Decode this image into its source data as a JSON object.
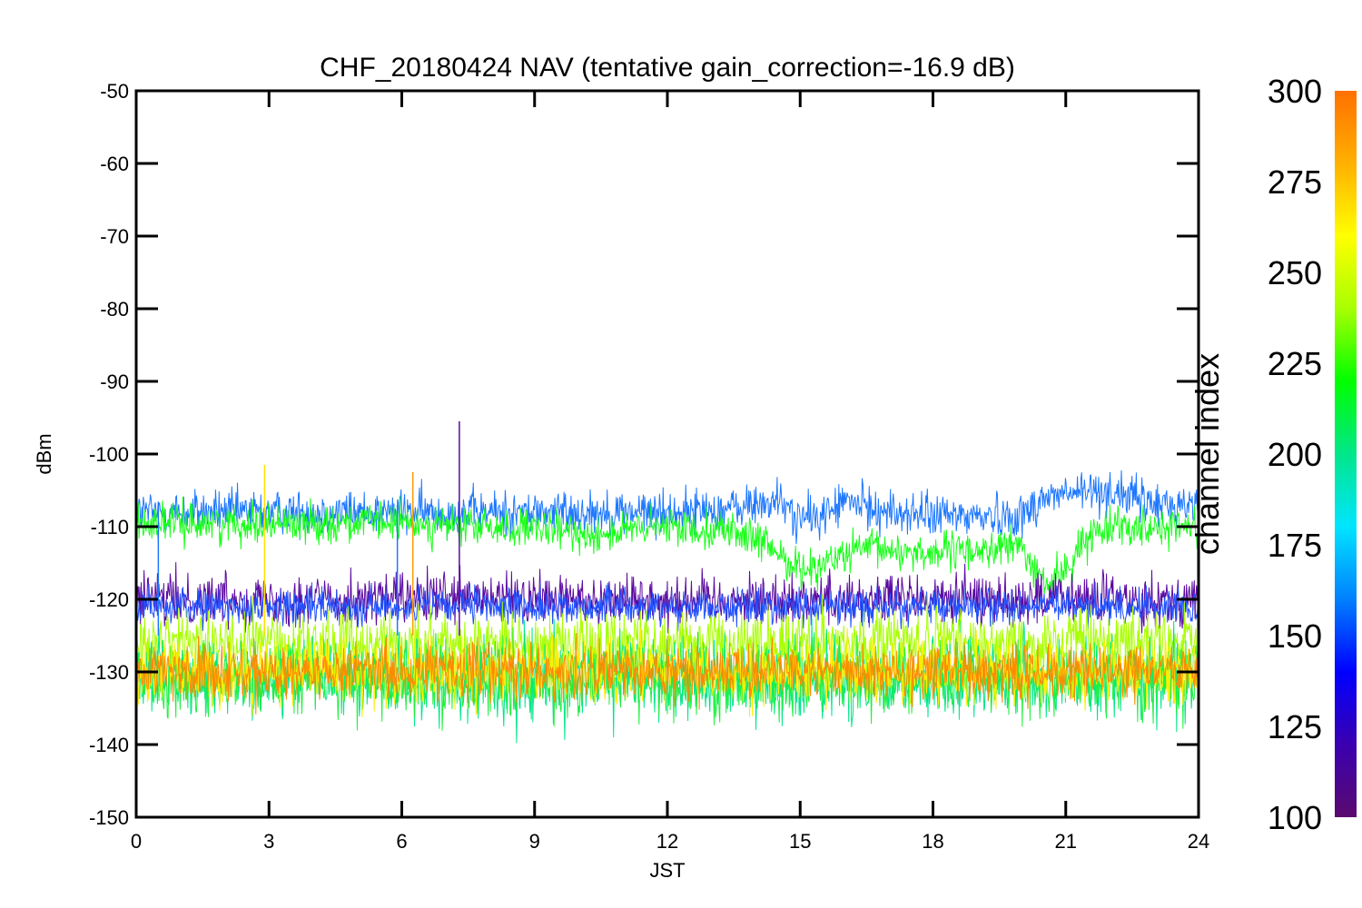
{
  "chart_data": {
    "type": "line",
    "title": "CHF_20180424 NAV (tentative gain_correction=-16.9 dB)",
    "xlabel": "JST",
    "ylabel": "dBm",
    "xlim": [
      0,
      24
    ],
    "ylim": [
      -150,
      -50
    ],
    "x_ticks": [
      "0",
      "3",
      "6",
      "9",
      "12",
      "15",
      "18",
      "21",
      "24"
    ],
    "y_ticks": [
      "-50",
      "-60",
      "-70",
      "-80",
      "-90",
      "-100",
      "-110",
      "-120",
      "-130",
      "-140",
      "-150"
    ],
    "colorbar": {
      "label": "channel index",
      "range": [
        100,
        300
      ],
      "ticks": [
        "300",
        "275",
        "250",
        "225",
        "200",
        "175",
        "150",
        "125",
        "100"
      ],
      "colormap": [
        "#5a0a6e",
        "#3a00b0",
        "#0000ff",
        "#0080ff",
        "#00e5ff",
        "#00e68a",
        "#00ff00",
        "#a8ff00",
        "#ffff00",
        "#ffb000",
        "#ff7000"
      ]
    },
    "series": [
      {
        "channel": 160,
        "color": "#1e78ff",
        "noise": 1.6,
        "x": [
          0,
          3,
          6,
          9,
          12,
          13.5,
          14.5,
          15,
          15.5,
          16,
          17,
          18,
          19,
          20,
          20.5,
          21,
          22,
          23,
          24
        ],
        "y": [
          -108,
          -108,
          -108,
          -108,
          -108,
          -107.5,
          -106.5,
          -109,
          -108.5,
          -106.5,
          -108,
          -108.5,
          -108.5,
          -108.5,
          -106,
          -105.5,
          -105,
          -107,
          -107
        ]
      },
      {
        "channel": 240,
        "color": "#18ff18",
        "noise": 1.4,
        "x": [
          0,
          3,
          6,
          9,
          10.5,
          12,
          13.5,
          14.5,
          15,
          15.5,
          16.5,
          17.5,
          18.5,
          19.5,
          20,
          20.3,
          20.6,
          21,
          21.5,
          22,
          23,
          24
        ],
        "y": [
          -109.5,
          -109.5,
          -109.5,
          -110.5,
          -111,
          -110,
          -110.5,
          -113.5,
          -116,
          -115,
          -113,
          -113.5,
          -113.5,
          -113,
          -112.5,
          -116.5,
          -118,
          -116,
          -111.5,
          -109.5,
          -110,
          -110
        ]
      },
      {
        "channel": 110,
        "color": "#5a0aa0",
        "noise": 1.9,
        "x": [
          0,
          24
        ],
        "y": [
          -120,
          -120
        ]
      },
      {
        "channel": 150,
        "color": "#1f52ff",
        "noise": 1.3,
        "x": [
          0,
          24
        ],
        "y": [
          -121,
          -121
        ]
      },
      {
        "channel": 255,
        "color": "#a8ff00",
        "noise": 2.4,
        "x": [
          0,
          24
        ],
        "y": [
          -126,
          -126
        ]
      },
      {
        "channel": 205,
        "color": "#00e68a",
        "noise": 3.0,
        "x": [
          0,
          24
        ],
        "y": [
          -131,
          -131
        ]
      },
      {
        "channel": 235,
        "color": "#22f040",
        "noise": 2.6,
        "x": [
          0,
          24
        ],
        "y": [
          -131,
          -131
        ]
      },
      {
        "channel": 270,
        "color": "#ffee00",
        "noise": 2.4,
        "x": [
          0,
          24
        ],
        "y": [
          -130,
          -130
        ]
      },
      {
        "channel": 295,
        "color": "#ff8a00",
        "noise": 2.0,
        "x": [
          0,
          24
        ],
        "y": [
          -130,
          -130
        ]
      }
    ],
    "spikes": [
      {
        "x": 2.9,
        "y_top": -101.5,
        "color": "#ffe000"
      },
      {
        "x": 6.25,
        "y_top": -102.5,
        "color": "#ff9a00"
      },
      {
        "x": 7.3,
        "y_top": -95.5,
        "color": "#5a0aa0"
      },
      {
        "x": 0.5,
        "y_top": -107,
        "color": "#1e78ff"
      },
      {
        "x": 5.9,
        "y_top": -107,
        "color": "#1e78ff"
      }
    ]
  }
}
